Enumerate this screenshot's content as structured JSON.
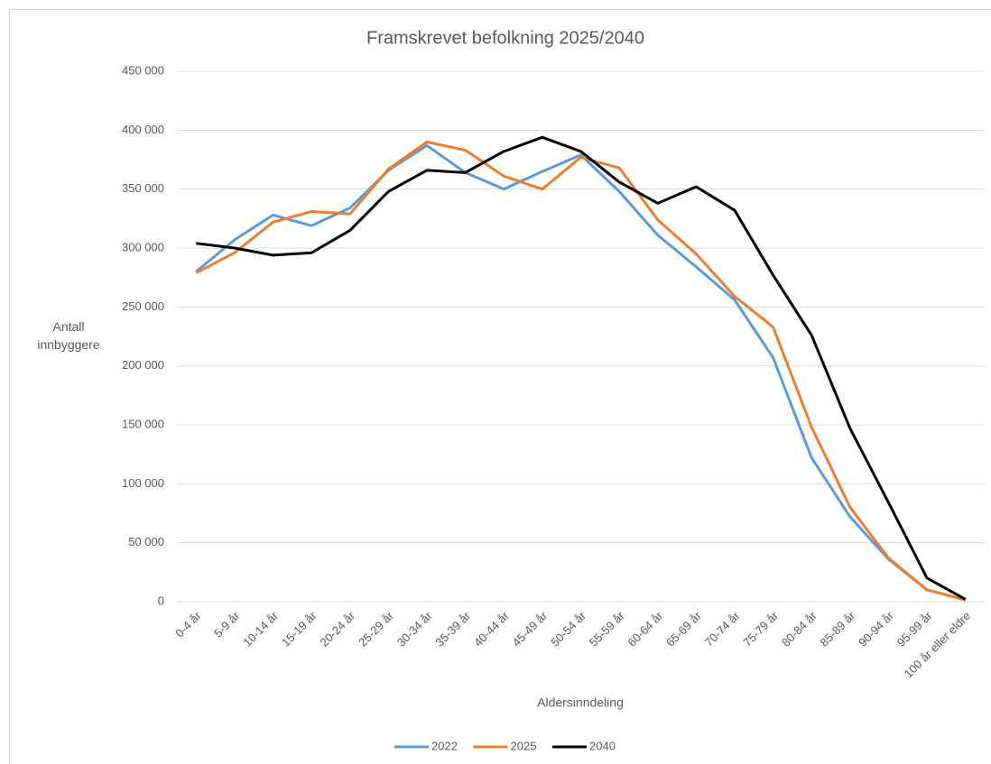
{
  "chart_data": {
    "type": "line",
    "title": "Framskrevet befolkning 2025/2040",
    "x_label": "Aldersinndeling",
    "y_label": "Antall innbyggere",
    "categories": [
      "0-4 år",
      "5-9 år",
      "10-14 år",
      "15-19 år",
      "20-24 år",
      "25-29 år",
      "30-34 år",
      "35-39 år",
      "40-44 år",
      "45-49 år",
      "50-54 år",
      "55-59 år",
      "60-64 år",
      "65-69 år",
      "70-74 år",
      "75-79 år",
      "80-84 år",
      "85-89 år",
      "90-94 år",
      "95-99 år",
      "100 år eller eldre"
    ],
    "series": [
      {
        "name": "2022",
        "color": "#5b9bd5",
        "values": [
          280000,
          307000,
          328000,
          319000,
          334000,
          366000,
          387000,
          364000,
          350000,
          365000,
          379000,
          348000,
          311000,
          284000,
          256000,
          207000,
          122000,
          72000,
          36000,
          10000,
          1500
        ]
      },
      {
        "name": "2025",
        "color": "#ed7d31",
        "values": [
          279000,
          296000,
          322000,
          331000,
          329000,
          367000,
          390000,
          383000,
          361000,
          350000,
          377000,
          368000,
          324000,
          295000,
          259000,
          233000,
          148000,
          80000,
          37000,
          10000,
          1500
        ]
      },
      {
        "name": "2040",
        "color": "#000000",
        "values": [
          304000,
          300000,
          294000,
          296000,
          315000,
          348000,
          366000,
          364000,
          382000,
          394000,
          382000,
          356000,
          338000,
          352000,
          332000,
          277000,
          226000,
          147000,
          84000,
          20000,
          2000
        ]
      }
    ],
    "ylim": [
      0,
      450000
    ],
    "yticks": [
      0,
      {
        "value": 50000,
        "label": "50 000"
      },
      {
        "value": 100000,
        "label": "100 000"
      },
      {
        "value": 150000,
        "label": "150 000"
      },
      {
        "value": 200000,
        "label": "200 000"
      },
      {
        "value": 250000,
        "label": "250 000"
      },
      {
        "value": 300000,
        "label": "300 000"
      },
      {
        "value": 350000,
        "label": "350 000"
      },
      {
        "value": 400000,
        "label": "400 000"
      },
      {
        "value": 450000,
        "label": "450 000"
      }
    ],
    "grid": true,
    "legend": "bottom"
  }
}
